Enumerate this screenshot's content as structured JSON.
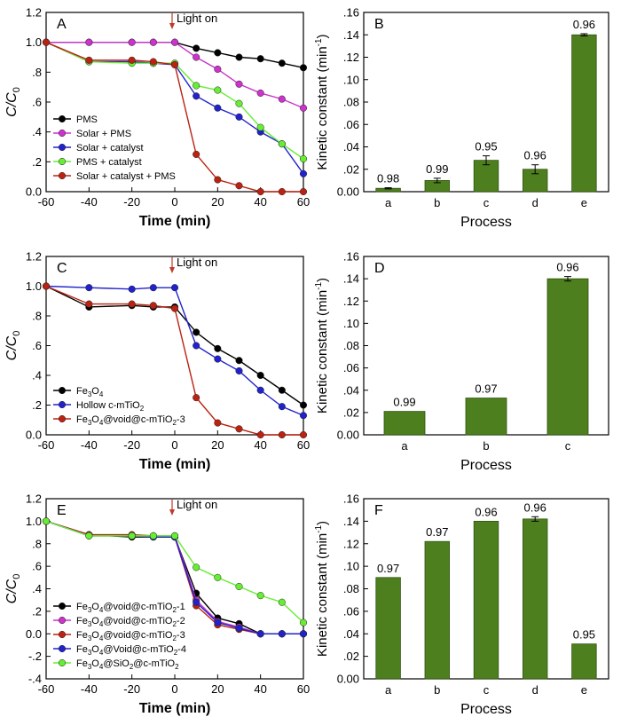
{
  "colors": {
    "bar": "#4e7f1e",
    "bar_edge": "#2f5410",
    "light_on": "#c0392b",
    "series": {
      "black": "#000000",
      "magenta": "#cc33cc",
      "blue": "#2222cc",
      "green": "#66ee33",
      "red": "#bb2211"
    }
  },
  "light_on_label": "Light on",
  "chart_data": [
    {
      "panel": "A",
      "type": "line",
      "xlabel": "Time (min)",
      "ylabel_base": "C/C",
      "ylabel_sub": "0",
      "xlim": [
        -60,
        60
      ],
      "ylim": [
        0,
        1.2
      ],
      "xticks": [
        -60,
        -40,
        -20,
        0,
        20,
        40,
        60
      ],
      "yticks": [
        0,
        0.2,
        0.4,
        0.6,
        0.8,
        1.0,
        1.2
      ],
      "ytick_labels": [
        "0.0",
        ".2",
        ".4",
        ".6",
        ".8",
        "1.0",
        "1.2"
      ],
      "light_on_x": 0,
      "legend_position": "bottom-left",
      "series": [
        {
          "label": "PMS",
          "color_key": "black",
          "x": [
            -60,
            -40,
            -20,
            -10,
            0,
            10,
            20,
            30,
            40,
            50,
            60
          ],
          "y": [
            1.0,
            1.0,
            1.0,
            1.0,
            1.0,
            0.96,
            0.93,
            0.9,
            0.89,
            0.86,
            0.83
          ]
        },
        {
          "label": "Solar + PMS",
          "color_key": "magenta",
          "x": [
            -60,
            -40,
            -20,
            -10,
            0,
            10,
            20,
            30,
            40,
            50,
            60
          ],
          "y": [
            1.0,
            1.0,
            1.0,
            1.0,
            1.0,
            0.9,
            0.82,
            0.72,
            0.66,
            0.62,
            0.56
          ]
        },
        {
          "label": "Solar + catalyst",
          "color_key": "blue",
          "x": [
            -60,
            -40,
            -20,
            -10,
            0,
            10,
            20,
            30,
            40,
            50,
            60
          ],
          "y": [
            1.0,
            0.87,
            0.87,
            0.86,
            0.85,
            0.64,
            0.56,
            0.5,
            0.4,
            0.32,
            0.12
          ]
        },
        {
          "label": "PMS + catalyst",
          "color_key": "green",
          "x": [
            -60,
            -40,
            -20,
            -10,
            0,
            10,
            20,
            30,
            40,
            50,
            60
          ],
          "y": [
            1.0,
            0.87,
            0.86,
            0.86,
            0.86,
            0.71,
            0.68,
            0.59,
            0.43,
            0.32,
            0.22
          ]
        },
        {
          "label": "Solar + catalyst + PMS",
          "color_key": "red",
          "x": [
            -60,
            -40,
            -20,
            -10,
            0,
            10,
            20,
            30,
            40,
            50,
            60
          ],
          "y": [
            1.0,
            0.88,
            0.88,
            0.87,
            0.85,
            0.25,
            0.08,
            0.04,
            0.0,
            0.0,
            0.0
          ]
        }
      ]
    },
    {
      "panel": "B",
      "type": "bar",
      "xlabel": "Process",
      "ylabel": "Kinetic constant (min",
      "ylabel_sup": "-1",
      "ylabel_close": ")",
      "ylim": [
        0,
        0.16
      ],
      "yticks": [
        0,
        0.02,
        0.04,
        0.06,
        0.08,
        0.1,
        0.12,
        0.14,
        0.16
      ],
      "ytick_labels": [
        "0.00",
        ".02",
        ".04",
        ".06",
        ".08",
        ".10",
        ".12",
        ".14",
        ".16"
      ],
      "categories": [
        "a",
        "b",
        "c",
        "d",
        "e"
      ],
      "values": [
        0.003,
        0.01,
        0.028,
        0.02,
        0.14
      ],
      "errors": [
        0.0005,
        0.002,
        0.004,
        0.004,
        0.001
      ],
      "bar_labels": [
        "0.98",
        "0.99",
        "0.95",
        "0.96",
        "0.96"
      ]
    },
    {
      "panel": "C",
      "type": "line",
      "xlabel": "Time (min)",
      "ylabel_base": "C/C",
      "ylabel_sub": "0",
      "xlim": [
        -60,
        60
      ],
      "ylim": [
        0,
        1.2
      ],
      "xticks": [
        -60,
        -40,
        -20,
        0,
        20,
        40,
        60
      ],
      "yticks": [
        0,
        0.2,
        0.4,
        0.6,
        0.8,
        1.0,
        1.2
      ],
      "ytick_labels": [
        "0.0",
        ".2",
        ".4",
        ".6",
        ".8",
        "1.0",
        "1.2"
      ],
      "light_on_x": 0,
      "legend_position": "bottom-left",
      "series": [
        {
          "label": "Fe3O4",
          "label_parts": [
            [
              "Fe",
              ""
            ],
            [
              "3",
              "sub"
            ],
            [
              "O",
              ""
            ],
            [
              "4",
              "sub"
            ]
          ],
          "color_key": "black",
          "x": [
            -60,
            -40,
            -20,
            -10,
            0,
            10,
            20,
            30,
            40,
            50,
            60
          ],
          "y": [
            1.0,
            0.86,
            0.87,
            0.86,
            0.86,
            0.69,
            0.58,
            0.5,
            0.4,
            0.3,
            0.2
          ]
        },
        {
          "label": "Hollow c-mTiO2",
          "label_parts": [
            [
              "Hollow c-mTiO",
              ""
            ],
            [
              "2",
              "sub"
            ]
          ],
          "color_key": "blue",
          "x": [
            -60,
            -40,
            -20,
            -10,
            0,
            10,
            20,
            30,
            40,
            50,
            60
          ],
          "y": [
            1.0,
            0.99,
            0.98,
            0.99,
            0.99,
            0.6,
            0.51,
            0.43,
            0.3,
            0.19,
            0.13
          ]
        },
        {
          "label": "Fe3O4@void@c-mTiO2-3",
          "label_parts": [
            [
              "Fe",
              ""
            ],
            [
              "3",
              "sub"
            ],
            [
              "O",
              ""
            ],
            [
              "4",
              "sub"
            ],
            [
              "@void@c-mTiO",
              ""
            ],
            [
              "2",
              "sub"
            ],
            [
              "-3",
              ""
            ]
          ],
          "color_key": "red",
          "x": [
            -60,
            -40,
            -20,
            -10,
            0,
            10,
            20,
            30,
            40,
            50,
            60
          ],
          "y": [
            1.0,
            0.88,
            0.88,
            0.87,
            0.85,
            0.25,
            0.08,
            0.04,
            0.0,
            0.0,
            0.0
          ]
        }
      ]
    },
    {
      "panel": "D",
      "type": "bar",
      "xlabel": "Process",
      "ylabel": "Kinetic constant (min",
      "ylabel_sup": "-1",
      "ylabel_close": ")",
      "ylim": [
        0,
        0.16
      ],
      "yticks": [
        0,
        0.02,
        0.04,
        0.06,
        0.08,
        0.1,
        0.12,
        0.14,
        0.16
      ],
      "ytick_labels": [
        "0.00",
        ".02",
        ".04",
        ".06",
        ".08",
        ".10",
        ".12",
        ".14",
        ".16"
      ],
      "categories": [
        "a",
        "b",
        "c"
      ],
      "values": [
        0.021,
        0.033,
        0.14
      ],
      "errors": [
        0.0,
        0.0,
        0.002
      ],
      "bar_labels": [
        "0.99",
        "0.97",
        "0.96"
      ]
    },
    {
      "panel": "E",
      "type": "line",
      "xlabel": "Time (min)",
      "ylabel_base": "C/C",
      "ylabel_sub": "0",
      "xlim": [
        -60,
        60
      ],
      "ylim": [
        -0.4,
        1.2
      ],
      "xticks": [
        -60,
        -40,
        -20,
        0,
        20,
        40,
        60
      ],
      "yticks": [
        -0.4,
        -0.2,
        0,
        0.2,
        0.4,
        0.6,
        0.8,
        1.0,
        1.2
      ],
      "ytick_labels": [
        "-.4",
        "-.2",
        "0.0",
        ".2",
        ".4",
        ".6",
        ".8",
        "1.0",
        "1.2"
      ],
      "light_on_x": 0,
      "legend_position": "bottom-left",
      "series": [
        {
          "label": "Fe3O4@void@c-mTiO2-1",
          "label_parts": [
            [
              "Fe",
              ""
            ],
            [
              "3",
              "sub"
            ],
            [
              "O",
              ""
            ],
            [
              "4",
              "sub"
            ],
            [
              "@void@c-mTiO",
              ""
            ],
            [
              "2",
              "sub"
            ],
            [
              "-1",
              ""
            ]
          ],
          "color_key": "black",
          "x": [
            -60,
            -40,
            -20,
            -10,
            0,
            10,
            20,
            30,
            40,
            50,
            60
          ],
          "y": [
            1.0,
            0.88,
            0.86,
            0.86,
            0.86,
            0.36,
            0.14,
            0.09,
            0.0,
            0.0,
            0.0
          ]
        },
        {
          "label": "Fe3O4@void@c-mTiO2-2",
          "label_parts": [
            [
              "Fe",
              ""
            ],
            [
              "3",
              "sub"
            ],
            [
              "O",
              ""
            ],
            [
              "4",
              "sub"
            ],
            [
              "@void@c-mTiO",
              ""
            ],
            [
              "2",
              "sub"
            ],
            [
              "-2",
              ""
            ]
          ],
          "color_key": "magenta",
          "x": [
            -60,
            -40,
            -20,
            -10,
            0,
            10,
            20,
            30,
            40,
            50,
            60
          ],
          "y": [
            1.0,
            0.88,
            0.87,
            0.87,
            0.87,
            0.3,
            0.11,
            0.06,
            0.0,
            0.0,
            0.0
          ]
        },
        {
          "label": "Fe3O4@void@c-mTiO2-3",
          "label_parts": [
            [
              "Fe",
              ""
            ],
            [
              "3",
              "sub"
            ],
            [
              "O",
              ""
            ],
            [
              "4",
              "sub"
            ],
            [
              "@void@c-mTiO",
              ""
            ],
            [
              "2",
              "sub"
            ],
            [
              "-3",
              ""
            ]
          ],
          "color_key": "red",
          "x": [
            -60,
            -40,
            -20,
            -10,
            0,
            10,
            20,
            30,
            40,
            50,
            60
          ],
          "y": [
            1.0,
            0.88,
            0.88,
            0.87,
            0.86,
            0.25,
            0.08,
            0.04,
            0.0,
            0.0,
            0.0
          ]
        },
        {
          "label": "Fe3O4@Void@c-mTiO2-4",
          "label_parts": [
            [
              "Fe",
              ""
            ],
            [
              "3",
              "sub"
            ],
            [
              "O",
              ""
            ],
            [
              "4",
              "sub"
            ],
            [
              "@Void@c-mTiO",
              ""
            ],
            [
              "2",
              "sub"
            ],
            [
              "-4",
              ""
            ]
          ],
          "color_key": "blue",
          "x": [
            -60,
            -40,
            -20,
            -10,
            0,
            10,
            20,
            30,
            40,
            50,
            60
          ],
          "y": [
            1.0,
            0.87,
            0.87,
            0.86,
            0.86,
            0.28,
            0.1,
            0.05,
            0.0,
            0.0,
            0.0
          ]
        },
        {
          "label": "Fe3O4@SiO2@c-mTiO2",
          "label_parts": [
            [
              "Fe",
              ""
            ],
            [
              "3",
              "sub"
            ],
            [
              "O",
              ""
            ],
            [
              "4",
              "sub"
            ],
            [
              "@SiO",
              ""
            ],
            [
              "2",
              "sub"
            ],
            [
              "@c-mTiO",
              ""
            ],
            [
              "2",
              "sub"
            ]
          ],
          "color_key": "green",
          "x": [
            -60,
            -40,
            -20,
            -10,
            0,
            10,
            20,
            30,
            40,
            50,
            60
          ],
          "y": [
            1.0,
            0.87,
            0.87,
            0.87,
            0.87,
            0.59,
            0.5,
            0.42,
            0.34,
            0.28,
            0.1
          ]
        }
      ]
    },
    {
      "panel": "F",
      "type": "bar",
      "xlabel": "Process",
      "ylabel": "Kinetic constant (min",
      "ylabel_sup": "-1",
      "ylabel_close": ")",
      "ylim": [
        0,
        0.16
      ],
      "yticks": [
        0,
        0.02,
        0.04,
        0.06,
        0.08,
        0.1,
        0.12,
        0.14,
        0.16
      ],
      "ytick_labels": [
        "0.00",
        ".02",
        ".04",
        ".06",
        ".08",
        ".10",
        ".12",
        ".14",
        ".16"
      ],
      "categories": [
        "a",
        "b",
        "c",
        "d",
        "e"
      ],
      "values": [
        0.09,
        0.122,
        0.14,
        0.142,
        0.031
      ],
      "errors": [
        0.0,
        0.0,
        0.0,
        0.002,
        0.0
      ],
      "bar_labels": [
        "0.97",
        "0.97",
        "0.96",
        "0.96",
        "0.95"
      ]
    }
  ]
}
